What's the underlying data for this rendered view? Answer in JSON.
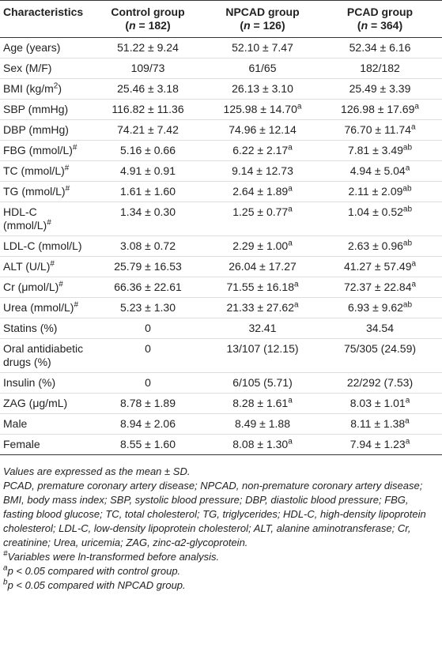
{
  "table": {
    "header": [
      [
        [
          "Characteristics"
        ]
      ],
      [
        [
          "Control group"
        ],
        [
          "(",
          {
            "i": "n"
          },
          " = 182)"
        ]
      ],
      [
        [
          "NPCAD group"
        ],
        [
          "(",
          {
            "i": "n"
          },
          " = 126)"
        ]
      ],
      [
        [
          "PCAD group"
        ],
        [
          "(",
          {
            "i": "n"
          },
          " = 364)"
        ]
      ]
    ],
    "rows": [
      [
        [
          "Age (years)"
        ],
        [
          "51.22 ± 9.24"
        ],
        [
          "52.10 ± 7.47"
        ],
        [
          "52.34 ± 6.16"
        ]
      ],
      [
        [
          "Sex (M/F)"
        ],
        [
          "109/73"
        ],
        [
          "61/65"
        ],
        [
          "182/182"
        ]
      ],
      [
        [
          "BMI (kg/m",
          {
            "sup": "2"
          },
          ")"
        ],
        [
          "25.46 ± 3.18"
        ],
        [
          "26.13 ± 3.10"
        ],
        [
          "25.49 ± 3.39"
        ]
      ],
      [
        [
          "SBP (mmHg)"
        ],
        [
          "116.82 ± 11.36"
        ],
        [
          "125.98 ± 14.70",
          {
            "sup": "a"
          }
        ],
        [
          "126.98 ± 17.69",
          {
            "sup": "a"
          }
        ]
      ],
      [
        [
          "DBP (mmHg)"
        ],
        [
          "74.21 ± 7.42"
        ],
        [
          "74.96 ± 12.14"
        ],
        [
          "76.70 ± 11.74",
          {
            "sup": "a"
          }
        ]
      ],
      [
        [
          "FBG (mmol/L)",
          {
            "sup": "#"
          }
        ],
        [
          "5.16 ± 0.66"
        ],
        [
          "6.22 ± 2.17",
          {
            "sup": "a"
          }
        ],
        [
          "7.81 ± 3.49",
          {
            "sup": "ab"
          }
        ]
      ],
      [
        [
          "TC (mmol/L)",
          {
            "sup": "#"
          }
        ],
        [
          "4.91 ± 0.91"
        ],
        [
          "9.14 ± 12.73"
        ],
        [
          "4.94 ± 5.04",
          {
            "sup": "a"
          }
        ]
      ],
      [
        [
          "TG (mmol/L)",
          {
            "sup": "#"
          }
        ],
        [
          "1.61 ± 1.60"
        ],
        [
          "2.64 ± 1.89",
          {
            "sup": "a"
          }
        ],
        [
          "2.11 ± 2.09",
          {
            "sup": "ab"
          }
        ]
      ],
      [
        [
          "HDL-C (mmol/L)",
          {
            "sup": "#"
          }
        ],
        [
          "1.34 ± 0.30"
        ],
        [
          "1.25 ± 0.77",
          {
            "sup": "a"
          }
        ],
        [
          "1.04 ± 0.52",
          {
            "sup": "ab"
          }
        ]
      ],
      [
        [
          "LDL-C (mmol/L)"
        ],
        [
          "3.08 ± 0.72"
        ],
        [
          "2.29 ± 1.00",
          {
            "sup": "a"
          }
        ],
        [
          "2.63 ± 0.96",
          {
            "sup": "ab"
          }
        ]
      ],
      [
        [
          "ALT (U/L)",
          {
            "sup": "#"
          }
        ],
        [
          "25.79 ± 16.53"
        ],
        [
          "26.04 ± 17.27"
        ],
        [
          "41.27 ± 57.49",
          {
            "sup": "a"
          }
        ]
      ],
      [
        [
          "Cr (μmol/L)",
          {
            "sup": "#"
          }
        ],
        [
          "66.36 ± 22.61"
        ],
        [
          "71.55 ± 16.18",
          {
            "sup": "a"
          }
        ],
        [
          "72.37 ± 22.84",
          {
            "sup": "a"
          }
        ]
      ],
      [
        [
          "Urea (mmol/L)",
          {
            "sup": "#"
          }
        ],
        [
          "5.23 ± 1.30"
        ],
        [
          "21.33 ± 27.62",
          {
            "sup": "a"
          }
        ],
        [
          "6.93 ± 9.62",
          {
            "sup": "ab"
          }
        ]
      ],
      [
        [
          "Statins (%)"
        ],
        [
          "0"
        ],
        [
          "32.41"
        ],
        [
          "34.54"
        ]
      ],
      [
        [
          "Oral antidiabetic drugs (%)"
        ],
        [
          "0"
        ],
        [
          "13/107 (12.15)"
        ],
        [
          "75/305 (24.59)"
        ]
      ],
      [
        [
          "Insulin (%)"
        ],
        [
          "0"
        ],
        [
          "6/105 (5.71)"
        ],
        [
          "22/292 (7.53)"
        ]
      ],
      [
        [
          "ZAG (μg/mL)"
        ],
        [
          "8.78 ± 1.89"
        ],
        [
          "8.28 ± 1.61",
          {
            "sup": "a"
          }
        ],
        [
          "8.03 ± 1.01",
          {
            "sup": "a"
          }
        ]
      ],
      [
        [
          "Male"
        ],
        [
          "8.94 ± 2.06"
        ],
        [
          "8.49 ± 1.88"
        ],
        [
          "8.11 ± 1.38",
          {
            "sup": "a"
          }
        ]
      ],
      [
        [
          "Female"
        ],
        [
          "8.55 ± 1.60"
        ],
        [
          "8.08 ± 1.30",
          {
            "sup": "a"
          }
        ],
        [
          "7.94 ± 1.23",
          {
            "sup": "a"
          }
        ]
      ]
    ],
    "footnotes": [
      [
        "Values are expressed as the mean ± SD."
      ],
      [
        "PCAD, premature coronary artery disease; NPCAD, non-premature coronary artery disease; BMI, body mass index; SBP, systolic blood pressure; DBP, diastolic blood pressure; FBG, fasting blood glucose; TC, total cholesterol; TG, triglycerides; HDL-C, high-density lipoprotein cholesterol; LDL-C, low-density lipoprotein cholesterol; ALT, alanine aminotransferase; Cr, creatinine; Urea, uricemia; ZAG, zinc-α2-glycoprotein."
      ],
      [
        {
          "sup": "#"
        },
        "Variables were ln-transformed before analysis."
      ],
      [
        {
          "sup": "a"
        },
        "p < 0.05 compared with control group."
      ],
      [
        {
          "sup": "b"
        },
        "p < 0.05 compared with NPCAD group."
      ]
    ]
  }
}
